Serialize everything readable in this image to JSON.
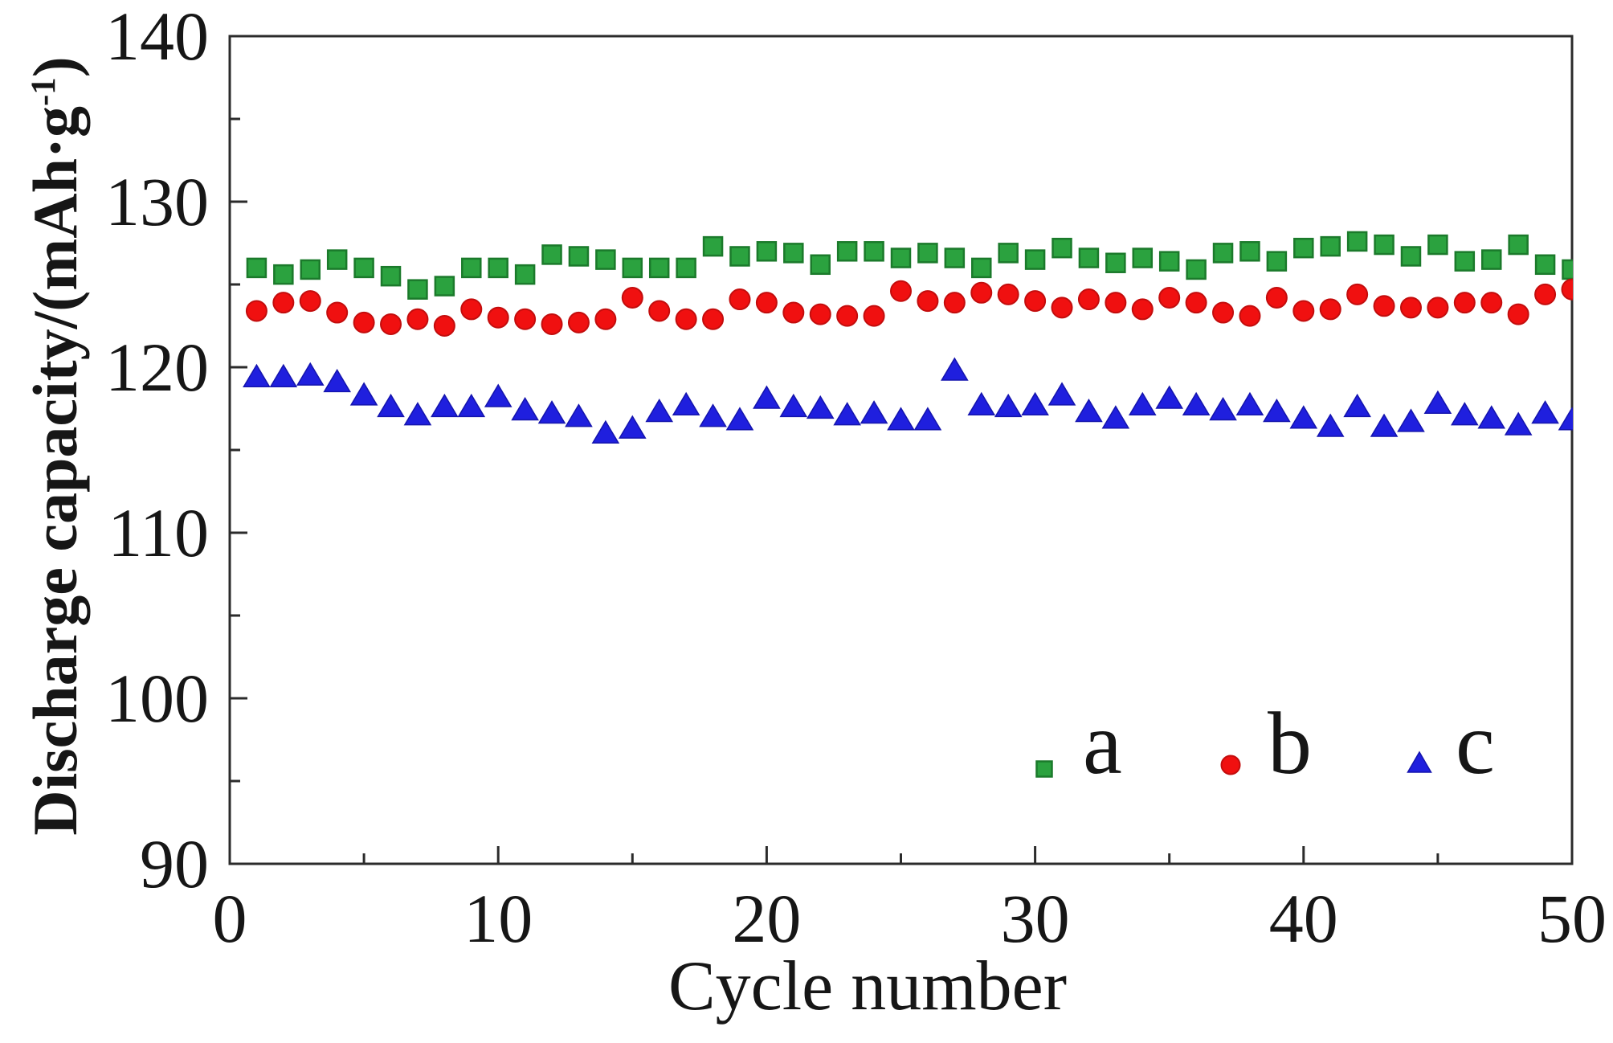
{
  "figure": {
    "ylabel_prefix": "Discharge capacity/(mAh·g",
    "ylabel_sup": "-1",
    "ylabel_suffix": ")",
    "xlabel": "Cycle number"
  },
  "chart_data": {
    "type": "scatter",
    "title": "",
    "xlabel": "Cycle number",
    "ylabel": "Discharge capacity/(mAh·g⁻¹)",
    "xlim": [
      0,
      50
    ],
    "ylim": [
      90,
      140
    ],
    "x_major_ticks": [
      0,
      10,
      20,
      30,
      40,
      50
    ],
    "x_minor_ticks": [
      5,
      15,
      25,
      35,
      45
    ],
    "y_major_ticks": [
      90,
      100,
      110,
      120,
      130,
      140
    ],
    "y_minor_ticks": [
      95,
      105,
      115,
      125,
      135
    ],
    "grid": false,
    "legend_position": "inside lower right",
    "x": [
      1,
      2,
      3,
      4,
      5,
      6,
      7,
      8,
      9,
      10,
      11,
      12,
      13,
      14,
      15,
      16,
      17,
      18,
      19,
      20,
      21,
      22,
      23,
      24,
      25,
      26,
      27,
      28,
      29,
      30,
      31,
      32,
      33,
      34,
      35,
      36,
      37,
      38,
      39,
      40,
      41,
      42,
      43,
      44,
      45,
      46,
      47,
      48,
      49,
      50
    ],
    "series": [
      {
        "name": "a",
        "marker": "square",
        "color": "#2ba23f",
        "edge": "#1b7a2b",
        "values": [
          126.0,
          125.6,
          125.9,
          126.5,
          126.0,
          125.5,
          124.7,
          124.9,
          126.0,
          126.0,
          125.6,
          126.8,
          126.7,
          126.5,
          126.0,
          126.0,
          126.0,
          127.3,
          126.7,
          127.0,
          126.9,
          126.2,
          127.0,
          127.0,
          126.6,
          126.9,
          126.6,
          126.0,
          126.9,
          126.5,
          127.2,
          126.6,
          126.3,
          126.6,
          126.4,
          125.9,
          126.9,
          127.0,
          126.4,
          127.2,
          127.3,
          127.6,
          127.4,
          126.7,
          127.4,
          126.4,
          126.5,
          127.4,
          126.2,
          125.9
        ]
      },
      {
        "name": "b",
        "marker": "circle",
        "color": "#f01010",
        "edge": "#c30d0d",
        "values": [
          123.4,
          123.9,
          124.0,
          123.3,
          122.7,
          122.6,
          122.9,
          122.5,
          123.5,
          123.0,
          122.9,
          122.6,
          122.7,
          122.9,
          124.2,
          123.4,
          122.9,
          122.9,
          124.1,
          123.9,
          123.3,
          123.2,
          123.1,
          123.1,
          124.6,
          124.0,
          123.9,
          124.5,
          124.4,
          124.0,
          123.6,
          124.1,
          123.9,
          123.5,
          124.2,
          123.9,
          123.3,
          123.1,
          124.2,
          123.4,
          123.5,
          124.4,
          123.7,
          123.6,
          123.6,
          123.9,
          123.9,
          123.2,
          124.4,
          124.7
        ]
      },
      {
        "name": "c",
        "marker": "triangle-up",
        "color": "#1f1fde",
        "edge": "#1414ad",
        "values": [
          119.4,
          119.4,
          119.5,
          119.1,
          118.3,
          117.6,
          117.1,
          117.6,
          117.6,
          118.2,
          117.4,
          117.2,
          117.0,
          116.0,
          116.3,
          117.3,
          117.7,
          117.0,
          116.8,
          118.1,
          117.6,
          117.5,
          117.1,
          117.2,
          116.8,
          116.8,
          119.8,
          117.7,
          117.6,
          117.7,
          118.3,
          117.3,
          116.9,
          117.7,
          118.1,
          117.7,
          117.4,
          117.7,
          117.3,
          116.9,
          116.4,
          117.6,
          116.4,
          116.7,
          117.8,
          117.1,
          116.9,
          116.5,
          117.2,
          116.8
        ]
      }
    ]
  }
}
